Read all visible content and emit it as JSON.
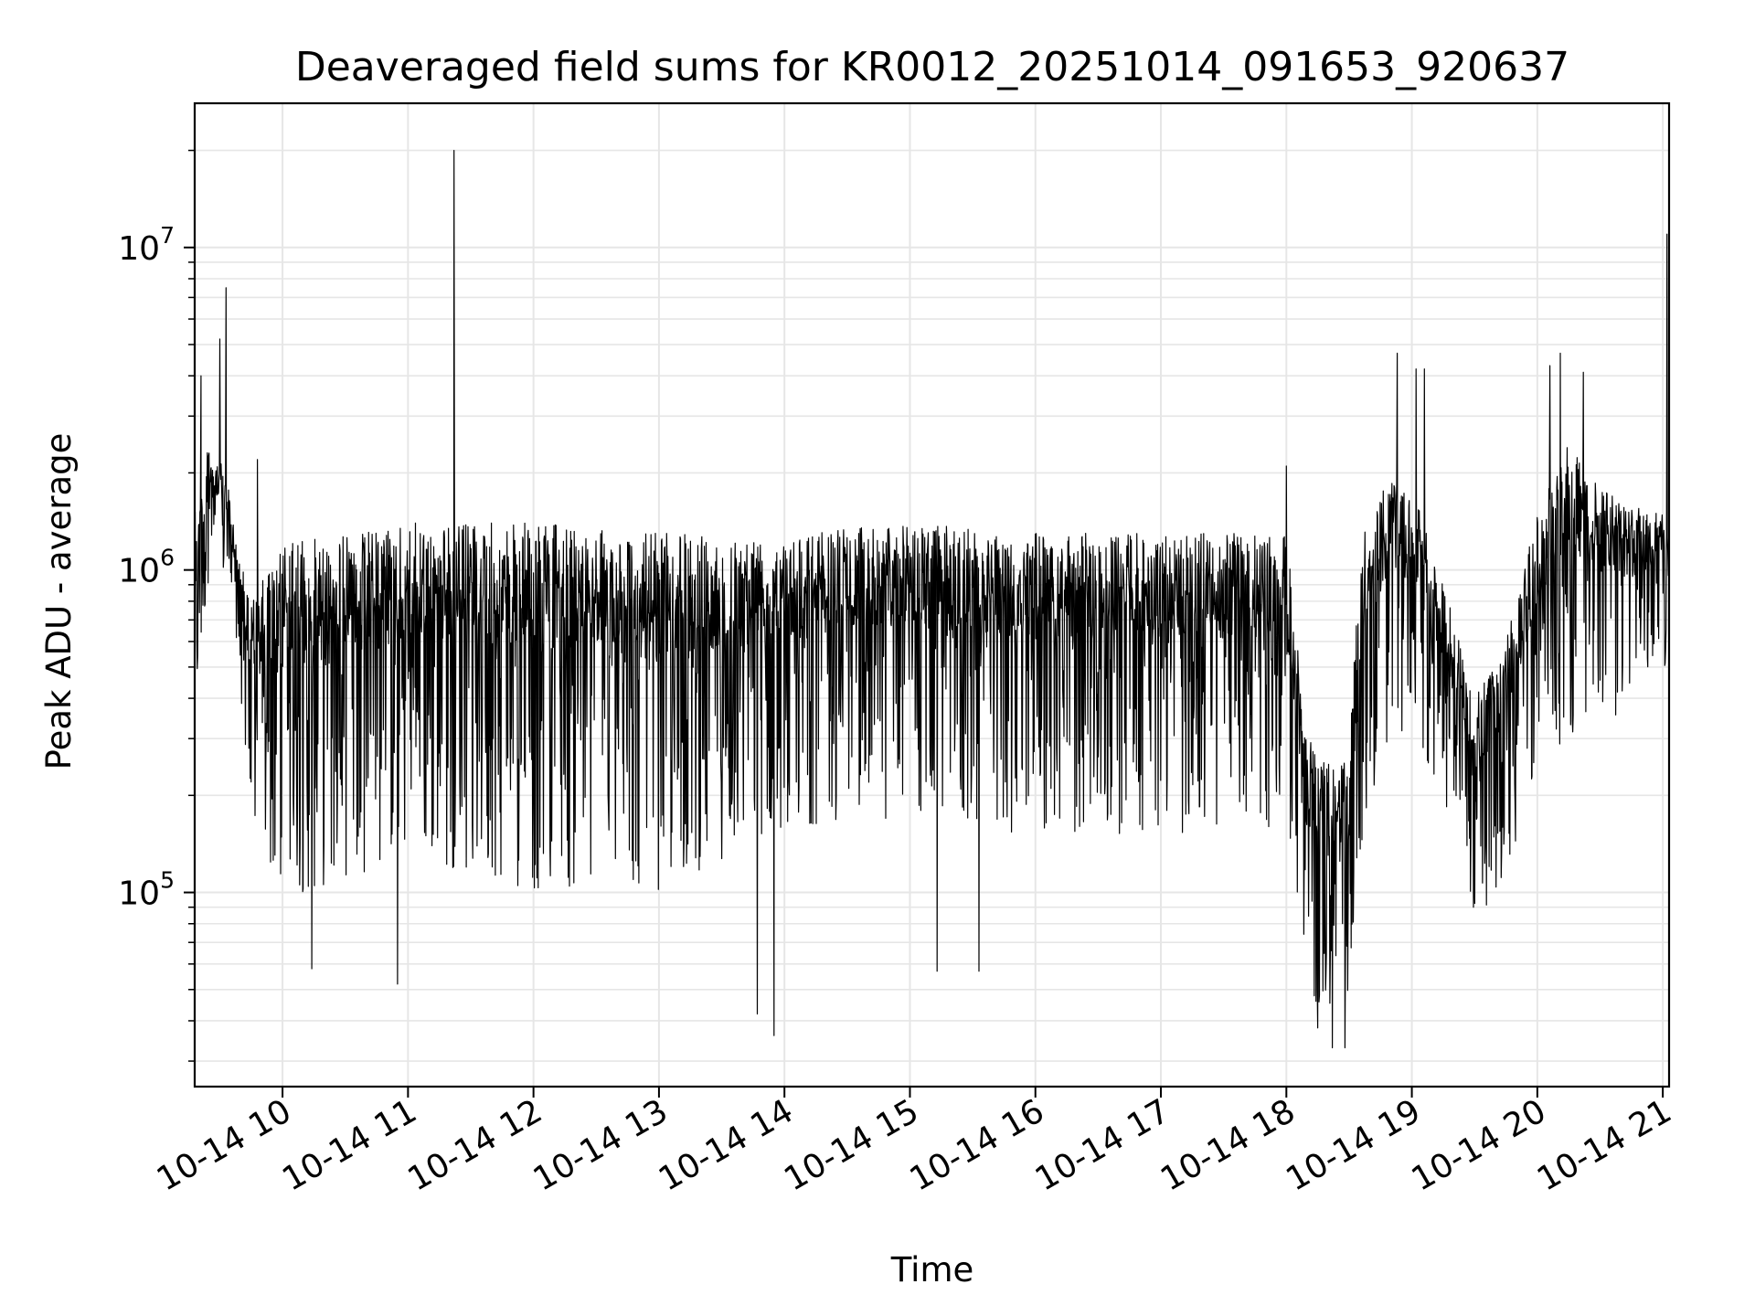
{
  "chart_data": {
    "type": "line",
    "title": "Deaveraged field sums for KR0012_20251014_091653_920637",
    "xlabel": "Time",
    "ylabel": "Peak ADU - average",
    "yscale": "log",
    "ylim": [
      25000,
      28000000
    ],
    "xlim": [
      "2025-10-14 09:18",
      "2025-10-14 21:03"
    ],
    "grid": true,
    "colors": {
      "line": "#000000",
      "grid": "#e6e6e6",
      "axes": "#000000"
    },
    "x_ticks": [
      {
        "time": "2025-10-14 10:00",
        "label": "10-14 10"
      },
      {
        "time": "2025-10-14 11:00",
        "label": "10-14 11"
      },
      {
        "time": "2025-10-14 12:00",
        "label": "10-14 12"
      },
      {
        "time": "2025-10-14 13:00",
        "label": "10-14 13"
      },
      {
        "time": "2025-10-14 14:00",
        "label": "10-14 14"
      },
      {
        "time": "2025-10-14 15:00",
        "label": "10-14 15"
      },
      {
        "time": "2025-10-14 16:00",
        "label": "10-14 16"
      },
      {
        "time": "2025-10-14 17:00",
        "label": "10-14 17"
      },
      {
        "time": "2025-10-14 18:00",
        "label": "10-14 18"
      },
      {
        "time": "2025-10-14 19:00",
        "label": "10-14 19"
      },
      {
        "time": "2025-10-14 20:00",
        "label": "10-14 20"
      },
      {
        "time": "2025-10-14 21:00",
        "label": "10-14 21"
      }
    ],
    "y_ticks": [
      {
        "value": 100000,
        "base": "10",
        "exp": "5"
      },
      {
        "value": 1000000,
        "base": "10",
        "exp": "6"
      },
      {
        "value": 10000000,
        "base": "10",
        "exp": "7"
      }
    ],
    "envelope": [
      {
        "time": "2025-10-14 09:18",
        "low": 300000,
        "high": 1500000
      },
      {
        "time": "2025-10-14 09:25",
        "low": 1000000,
        "high": 2500000
      },
      {
        "time": "2025-10-14 09:33",
        "low": 900000,
        "high": 2000000
      },
      {
        "time": "2025-10-14 09:38",
        "low": 600000,
        "high": 1200000
      },
      {
        "time": "2025-10-14 09:45",
        "low": 150000,
        "high": 800000
      },
      {
        "time": "2025-10-14 10:00",
        "low": 90000,
        "high": 1200000
      },
      {
        "time": "2025-10-14 10:30",
        "low": 110000,
        "high": 1300000
      },
      {
        "time": "2025-10-14 11:00",
        "low": 130000,
        "high": 1400000
      },
      {
        "time": "2025-10-14 12:00",
        "low": 100000,
        "high": 1400000
      },
      {
        "time": "2025-10-14 13:00",
        "low": 100000,
        "high": 1300000
      },
      {
        "time": "2025-10-14 14:00",
        "low": 160000,
        "high": 1300000
      },
      {
        "time": "2025-10-14 15:00",
        "low": 170000,
        "high": 1400000
      },
      {
        "time": "2025-10-14 16:00",
        "low": 150000,
        "high": 1300000
      },
      {
        "time": "2025-10-14 17:00",
        "low": 150000,
        "high": 1300000
      },
      {
        "time": "2025-10-14 18:00",
        "low": 160000,
        "high": 1300000
      },
      {
        "time": "2025-10-14 18:10",
        "low": 45000,
        "high": 300000
      },
      {
        "time": "2025-10-14 18:30",
        "low": 40000,
        "high": 250000
      },
      {
        "time": "2025-10-14 18:35",
        "low": 120000,
        "high": 1200000
      },
      {
        "time": "2025-10-14 18:50",
        "low": 300000,
        "high": 2000000
      },
      {
        "time": "2025-10-14 19:05",
        "low": 250000,
        "high": 1500000
      },
      {
        "time": "2025-10-14 19:20",
        "low": 150000,
        "high": 700000
      },
      {
        "time": "2025-10-14 19:30",
        "low": 80000,
        "high": 400000
      },
      {
        "time": "2025-10-14 19:45",
        "low": 110000,
        "high": 600000
      },
      {
        "time": "2025-10-14 20:00",
        "low": 250000,
        "high": 1500000
      },
      {
        "time": "2025-10-14 20:15",
        "low": 300000,
        "high": 2500000
      },
      {
        "time": "2025-10-14 20:40",
        "low": 350000,
        "high": 1600000
      },
      {
        "time": "2025-10-14 21:00",
        "low": 600000,
        "high": 1500000
      },
      {
        "time": "2025-10-14 21:03",
        "low": 300000,
        "high": 1300000
      }
    ],
    "spikes": [
      {
        "time": "2025-10-14 09:33",
        "value": 7500000
      },
      {
        "time": "2025-10-14 09:30",
        "value": 5200000
      },
      {
        "time": "2025-10-14 09:21",
        "value": 4000000
      },
      {
        "time": "2025-10-14 11:22",
        "value": 20000000
      },
      {
        "time": "2025-10-14 18:53",
        "value": 4700000
      },
      {
        "time": "2025-10-14 19:02",
        "value": 4200000
      },
      {
        "time": "2025-10-14 19:06",
        "value": 4200000
      },
      {
        "time": "2025-10-14 20:06",
        "value": 4300000
      },
      {
        "time": "2025-10-14 20:11",
        "value": 4700000
      },
      {
        "time": "2025-10-14 20:22",
        "value": 4100000
      },
      {
        "time": "2025-10-14 21:02",
        "value": 11000000
      },
      {
        "time": "2025-10-14 09:48",
        "value": 2200000
      },
      {
        "time": "2025-10-14 18:00",
        "value": 2100000
      }
    ],
    "dips": [
      {
        "time": "2025-10-14 13:47",
        "value": 42000
      },
      {
        "time": "2025-10-14 13:55",
        "value": 36000
      },
      {
        "time": "2025-10-14 18:22",
        "value": 33000
      },
      {
        "time": "2025-10-14 18:28",
        "value": 33000
      },
      {
        "time": "2025-10-14 18:15",
        "value": 38000
      },
      {
        "time": "2025-10-14 10:55",
        "value": 52000
      },
      {
        "time": "2025-10-14 10:14",
        "value": 58000
      },
      {
        "time": "2025-10-14 15:13",
        "value": 57000
      },
      {
        "time": "2025-10-14 15:33",
        "value": 57000
      }
    ]
  }
}
